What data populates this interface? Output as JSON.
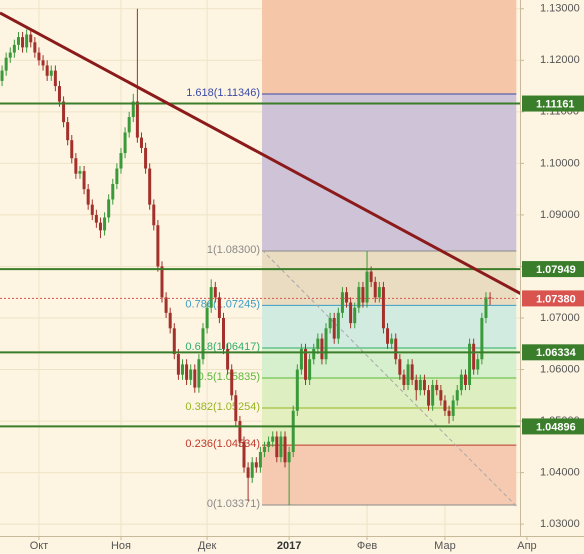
{
  "chart_data": {
    "type": "candlestick",
    "xlim": [
      -0.5,
      126.3
    ],
    "ylim": [
      1.0277,
      1.1317
    ],
    "yticks": [
      {
        "value": 1.03,
        "label": "1.03000"
      },
      {
        "value": 1.04,
        "label": "1.04000"
      },
      {
        "value": 1.05,
        "label": "1.05000"
      },
      {
        "value": 1.06,
        "label": "1.06000"
      },
      {
        "value": 1.07,
        "label": "1.07000"
      },
      {
        "value": 1.08,
        "label": "1.08000"
      },
      {
        "value": 1.09,
        "label": "1.09000"
      },
      {
        "value": 1.1,
        "label": "1.10000"
      },
      {
        "value": 1.11,
        "label": "1.11000"
      },
      {
        "value": 1.12,
        "label": "1.12000"
      },
      {
        "value": 1.13,
        "label": "1.13000"
      }
    ],
    "xticks": [
      {
        "value": 9,
        "label": "Окт"
      },
      {
        "value": 29,
        "label": "Ноя"
      },
      {
        "value": 50,
        "label": "Дек"
      },
      {
        "value": 70,
        "label": "2017",
        "bold": true
      },
      {
        "value": 89,
        "label": "Фев"
      },
      {
        "value": 108,
        "label": "Мар"
      },
      {
        "value": 128,
        "label": "Апр"
      }
    ],
    "grid": true,
    "up_color": "#3a9a3a",
    "down_color": "#a3302a",
    "open": [
      1.116,
      1.118,
      1.1205,
      1.1215,
      1.123,
      1.1245,
      1.1225,
      1.125,
      1.1235,
      1.1215,
      1.12,
      1.119,
      1.117,
      1.118,
      1.115,
      1.112,
      1.108,
      1.1045,
      1.101,
      1.098,
      1.0985,
      1.095,
      1.092,
      1.09,
      1.0885,
      1.087,
      1.0895,
      1.093,
      1.096,
      1.099,
      1.102,
      1.106,
      1.109,
      1.112,
      1.105,
      1.103,
      1.099,
      1.092,
      1.088,
      1.08,
      1.074,
      1.071,
      1.068,
      1.063,
      1.059,
      1.061,
      1.058,
      1.06,
      1.0565,
      1.062,
      1.068,
      1.072,
      1.076,
      1.074,
      1.07,
      1.064,
      1.06,
      1.055,
      1.05,
      1.046,
      1.041,
      1.039,
      1.042,
      1.041,
      1.044,
      1.045,
      1.046,
      1.047,
      1.043,
      1.047,
      1.042,
      1.044,
      1.052,
      1.06,
      1.064,
      1.058,
      1.062,
      1.064,
      1.066,
      1.062,
      1.068,
      1.07,
      1.066,
      1.071,
      1.075,
      1.073,
      1.069,
      1.072,
      1.076,
      1.073,
      1.079,
      1.077,
      1.074,
      1.076,
      1.068,
      1.065,
      1.066,
      1.062,
      1.059,
      1.057,
      1.061,
      1.058,
      1.056,
      1.058,
      1.056,
      1.053,
      1.057,
      1.056,
      1.054,
      1.052,
      1.051,
      1.054,
      1.056,
      1.059,
      1.057,
      1.065,
      1.06,
      1.062,
      1.07,
      1.074
    ],
    "high": [
      1.119,
      1.1215,
      1.1225,
      1.124,
      1.1255,
      1.1255,
      1.126,
      1.126,
      1.1245,
      1.1225,
      1.121,
      1.12,
      1.119,
      1.119,
      1.116,
      1.113,
      1.109,
      1.1055,
      1.102,
      1.0995,
      1.0995,
      1.096,
      1.093,
      1.091,
      1.0895,
      1.0905,
      1.094,
      1.097,
      1.1,
      1.103,
      1.107,
      1.11,
      1.1135,
      1.13,
      1.106,
      1.104,
      1.1,
      1.093,
      1.089,
      1.081,
      1.075,
      1.072,
      1.069,
      1.064,
      1.062,
      1.062,
      1.061,
      1.061,
      1.063,
      1.069,
      1.073,
      1.0775,
      1.077,
      1.075,
      1.071,
      1.065,
      1.061,
      1.056,
      1.051,
      1.047,
      1.042,
      1.043,
      1.043,
      1.045,
      1.046,
      1.047,
      1.048,
      1.048,
      1.048,
      1.048,
      1.045,
      1.053,
      1.061,
      1.065,
      1.065,
      1.063,
      1.065,
      1.067,
      1.067,
      1.069,
      1.071,
      1.071,
      1.072,
      1.076,
      1.076,
      1.074,
      1.073,
      1.077,
      1.077,
      1.083,
      1.08,
      1.078,
      1.077,
      1.077,
      1.069,
      1.067,
      1.067,
      1.063,
      1.06,
      1.062,
      1.062,
      1.059,
      1.059,
      1.059,
      1.057,
      1.058,
      1.058,
      1.057,
      1.055,
      1.053,
      1.055,
      1.057,
      1.06,
      1.06,
      1.066,
      1.066,
      1.063,
      1.071,
      1.075,
      1.075
    ],
    "low": [
      1.115,
      1.117,
      1.1195,
      1.1205,
      1.122,
      1.1215,
      1.1215,
      1.1225,
      1.1205,
      1.119,
      1.118,
      1.116,
      1.116,
      1.114,
      1.111,
      1.107,
      1.1035,
      1.1,
      1.097,
      1.097,
      1.094,
      1.091,
      1.089,
      1.0875,
      1.0855,
      1.086,
      1.0885,
      1.092,
      1.095,
      1.098,
      1.101,
      1.105,
      1.108,
      1.104,
      1.102,
      1.098,
      1.091,
      1.087,
      1.079,
      1.073,
      1.07,
      1.067,
      1.062,
      1.058,
      1.058,
      1.057,
      1.057,
      1.0555,
      1.0555,
      1.061,
      1.067,
      1.071,
      1.073,
      1.069,
      1.063,
      1.059,
      1.054,
      1.049,
      1.045,
      1.04,
      1.0345,
      1.038,
      1.04,
      1.04,
      1.043,
      1.044,
      1.045,
      1.042,
      1.042,
      1.041,
      1.0337,
      1.043,
      1.051,
      1.059,
      1.057,
      1.057,
      1.061,
      1.063,
      1.061,
      1.061,
      1.067,
      1.065,
      1.065,
      1.07,
      1.072,
      1.068,
      1.068,
      1.071,
      1.072,
      1.072,
      1.076,
      1.073,
      1.073,
      1.067,
      1.064,
      1.064,
      1.061,
      1.058,
      1.056,
      1.056,
      1.057,
      1.054,
      1.055,
      1.055,
      1.052,
      1.052,
      1.055,
      1.053,
      1.051,
      1.0495,
      1.05,
      1.053,
      1.055,
      1.056,
      1.056,
      1.059,
      1.059,
      1.061,
      1.069,
      1.0725
    ],
    "close": [
      1.118,
      1.1205,
      1.1215,
      1.123,
      1.1245,
      1.1225,
      1.125,
      1.1235,
      1.1215,
      1.12,
      1.119,
      1.117,
      1.118,
      1.115,
      1.112,
      1.108,
      1.1045,
      1.101,
      1.098,
      1.0985,
      1.095,
      1.092,
      1.09,
      1.0885,
      1.087,
      1.0895,
      1.093,
      1.096,
      1.099,
      1.102,
      1.106,
      1.109,
      1.112,
      1.105,
      1.103,
      1.099,
      1.092,
      1.088,
      1.08,
      1.074,
      1.071,
      1.068,
      1.063,
      1.059,
      1.061,
      1.058,
      1.06,
      1.0565,
      1.062,
      1.068,
      1.072,
      1.076,
      1.074,
      1.07,
      1.064,
      1.06,
      1.055,
      1.05,
      1.046,
      1.041,
      1.039,
      1.042,
      1.041,
      1.044,
      1.045,
      1.046,
      1.047,
      1.043,
      1.047,
      1.042,
      1.044,
      1.052,
      1.06,
      1.064,
      1.058,
      1.062,
      1.064,
      1.066,
      1.062,
      1.068,
      1.07,
      1.066,
      1.071,
      1.075,
      1.073,
      1.069,
      1.072,
      1.076,
      1.073,
      1.079,
      1.077,
      1.074,
      1.076,
      1.068,
      1.065,
      1.066,
      1.062,
      1.059,
      1.057,
      1.061,
      1.058,
      1.056,
      1.058,
      1.056,
      1.053,
      1.057,
      1.056,
      1.054,
      1.052,
      1.051,
      1.054,
      1.056,
      1.059,
      1.057,
      1.065,
      1.06,
      1.062,
      1.07,
      1.074,
      1.0738
    ],
    "fib_x": [
      63.4,
      125.4
    ],
    "fib_top_fill": "#f5c6a8",
    "fib_levels": [
      {
        "label": "1.618(1.11346)",
        "price": 1.11346,
        "color": "#3b4aa8",
        "fill": "#cfc3d8"
      },
      {
        "label": "1(1.08300)",
        "price": 1.083,
        "color": "#8a8a8a",
        "fill": "#e9dcc0"
      },
      {
        "label": "0.786(1.07245)",
        "price": 1.07245,
        "color": "#3d9cc4",
        "fill": "#d2ebe0"
      },
      {
        "label": "0.618(1.06417)",
        "price": 1.06417,
        "color": "#2fae6a",
        "fill": "#d6efcc"
      },
      {
        "label": "0.5(1.05835)",
        "price": 1.05835,
        "color": "#5cb83a",
        "fill": "#ddefc0"
      },
      {
        "label": "0.382(1.05254)",
        "price": 1.05254,
        "color": "#95b521",
        "fill": "#e3efbf"
      },
      {
        "label": "0.236(1.04534)",
        "price": 1.04534,
        "color": "#c0392b",
        "fill": "#f5cab0"
      },
      {
        "label": "0(1.03371)",
        "price": 1.03371,
        "color": "#8a8a8a",
        "fill": null
      }
    ],
    "fib_diagonal": {
      "x": [
        63.4,
        125.4
      ],
      "y": [
        1.0832,
        1.0335
      ],
      "color": "#a8a8a8"
    },
    "trendline": {
      "x": [
        -0.5,
        127
      ],
      "y": [
        1.1292,
        1.0745
      ],
      "color": "#8b1a1a"
    },
    "levels": [
      {
        "price": 1.11161,
        "label": "1.11161",
        "color": "#3a7d2a"
      },
      {
        "price": 1.07949,
        "label": "1.07949",
        "color": "#3a7d2a"
      },
      {
        "price": 1.06334,
        "label": "1.06334",
        "color": "#3a7d2a"
      },
      {
        "price": 1.04896,
        "label": "1.04896",
        "color": "#3a7d2a"
      }
    ],
    "last_price": {
      "price": 1.0738,
      "label": "1.07380",
      "color": "#d9534f"
    }
  }
}
